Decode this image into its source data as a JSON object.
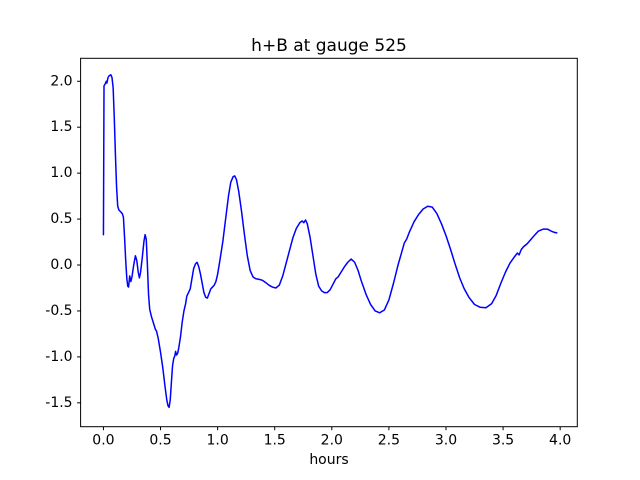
{
  "chart_data": {
    "type": "line",
    "title": "h+B at gauge 525",
    "xlabel": "hours",
    "ylabel": "",
    "xlim": [
      -0.2,
      4.15
    ],
    "ylim": [
      -1.76,
      2.25
    ],
    "grid": false,
    "legend": null,
    "line_color": "#0000ff",
    "line_width": 1.5,
    "x_ticks": [
      {
        "label": "0.0",
        "value": 0.0
      },
      {
        "label": "0.5",
        "value": 0.5
      },
      {
        "label": "1.0",
        "value": 1.0
      },
      {
        "label": "1.5",
        "value": 1.5
      },
      {
        "label": "2.0",
        "value": 2.0
      },
      {
        "label": "2.5",
        "value": 2.5
      },
      {
        "label": "3.0",
        "value": 3.0
      },
      {
        "label": "3.5",
        "value": 3.5
      },
      {
        "label": "4.0",
        "value": 4.0
      }
    ],
    "y_ticks": [
      {
        "label": "2.0",
        "value": 2.0
      },
      {
        "label": "1.5",
        "value": 1.5
      },
      {
        "label": "1.0",
        "value": 1.0
      },
      {
        "label": "0.5",
        "value": 0.5
      },
      {
        "label": "0.0",
        "value": 0.0
      },
      {
        "label": "-0.5",
        "value": -0.5
      },
      {
        "label": "-1.0",
        "value": -1.0
      },
      {
        "label": "-1.5",
        "value": -1.5
      }
    ],
    "series": [
      {
        "name": "h+B",
        "points": [
          [
            0.0,
            0.33
          ],
          [
            0.005,
            1.95
          ],
          [
            0.015,
            1.97
          ],
          [
            0.025,
            2.0
          ],
          [
            0.03,
            1.98
          ],
          [
            0.04,
            2.04
          ],
          [
            0.05,
            2.06
          ],
          [
            0.065,
            2.07
          ],
          [
            0.075,
            2.04
          ],
          [
            0.085,
            1.93
          ],
          [
            0.095,
            1.6
          ],
          [
            0.105,
            1.2
          ],
          [
            0.115,
            0.85
          ],
          [
            0.125,
            0.64
          ],
          [
            0.135,
            0.6
          ],
          [
            0.15,
            0.58
          ],
          [
            0.165,
            0.56
          ],
          [
            0.175,
            0.52
          ],
          [
            0.185,
            0.3
          ],
          [
            0.195,
            0.05
          ],
          [
            0.205,
            -0.15
          ],
          [
            0.213,
            -0.23
          ],
          [
            0.22,
            -0.24
          ],
          [
            0.23,
            -0.12
          ],
          [
            0.24,
            -0.18
          ],
          [
            0.25,
            -0.13
          ],
          [
            0.265,
            0.0
          ],
          [
            0.28,
            0.1
          ],
          [
            0.292,
            0.05
          ],
          [
            0.305,
            -0.08
          ],
          [
            0.315,
            -0.14
          ],
          [
            0.325,
            -0.08
          ],
          [
            0.34,
            0.08
          ],
          [
            0.355,
            0.26
          ],
          [
            0.365,
            0.33
          ],
          [
            0.375,
            0.28
          ],
          [
            0.385,
            0.0
          ],
          [
            0.395,
            -0.32
          ],
          [
            0.405,
            -0.48
          ],
          [
            0.42,
            -0.56
          ],
          [
            0.43,
            -0.6
          ],
          [
            0.445,
            -0.66
          ],
          [
            0.455,
            -0.7
          ],
          [
            0.465,
            -0.72
          ],
          [
            0.48,
            -0.8
          ],
          [
            0.5,
            -0.95
          ],
          [
            0.52,
            -1.12
          ],
          [
            0.54,
            -1.33
          ],
          [
            0.555,
            -1.47
          ],
          [
            0.565,
            -1.53
          ],
          [
            0.575,
            -1.55
          ],
          [
            0.585,
            -1.47
          ],
          [
            0.595,
            -1.28
          ],
          [
            0.605,
            -1.1
          ],
          [
            0.615,
            -1.02
          ],
          [
            0.625,
            -0.99
          ],
          [
            0.632,
            -0.94
          ],
          [
            0.64,
            -0.98
          ],
          [
            0.65,
            -0.96
          ],
          [
            0.66,
            -0.9
          ],
          [
            0.675,
            -0.78
          ],
          [
            0.69,
            -0.62
          ],
          [
            0.705,
            -0.5
          ],
          [
            0.72,
            -0.42
          ],
          [
            0.73,
            -0.34
          ],
          [
            0.745,
            -0.3
          ],
          [
            0.76,
            -0.26
          ],
          [
            0.775,
            -0.15
          ],
          [
            0.79,
            -0.04
          ],
          [
            0.805,
            0.01
          ],
          [
            0.82,
            0.03
          ],
          [
            0.835,
            -0.02
          ],
          [
            0.85,
            -0.1
          ],
          [
            0.865,
            -0.2
          ],
          [
            0.88,
            -0.3
          ],
          [
            0.895,
            -0.35
          ],
          [
            0.91,
            -0.36
          ],
          [
            0.925,
            -0.31
          ],
          [
            0.94,
            -0.26
          ],
          [
            0.955,
            -0.24
          ],
          [
            0.97,
            -0.22
          ],
          [
            0.985,
            -0.18
          ],
          [
            1.0,
            -0.1
          ],
          [
            1.02,
            0.05
          ],
          [
            1.045,
            0.25
          ],
          [
            1.07,
            0.5
          ],
          [
            1.095,
            0.75
          ],
          [
            1.115,
            0.9
          ],
          [
            1.135,
            0.96
          ],
          [
            1.15,
            0.97
          ],
          [
            1.165,
            0.93
          ],
          [
            1.185,
            0.8
          ],
          [
            1.21,
            0.58
          ],
          [
            1.235,
            0.33
          ],
          [
            1.26,
            0.1
          ],
          [
            1.285,
            -0.06
          ],
          [
            1.31,
            -0.13
          ],
          [
            1.335,
            -0.15
          ],
          [
            1.36,
            -0.155
          ],
          [
            1.39,
            -0.165
          ],
          [
            1.42,
            -0.19
          ],
          [
            1.45,
            -0.22
          ],
          [
            1.48,
            -0.24
          ],
          [
            1.51,
            -0.25
          ],
          [
            1.54,
            -0.22
          ],
          [
            1.57,
            -0.12
          ],
          [
            1.6,
            0.02
          ],
          [
            1.63,
            0.16
          ],
          [
            1.66,
            0.3
          ],
          [
            1.69,
            0.4
          ],
          [
            1.72,
            0.46
          ],
          [
            1.74,
            0.48
          ],
          [
            1.755,
            0.46
          ],
          [
            1.77,
            0.49
          ],
          [
            1.785,
            0.45
          ],
          [
            1.81,
            0.3
          ],
          [
            1.835,
            0.1
          ],
          [
            1.86,
            -0.1
          ],
          [
            1.885,
            -0.23
          ],
          [
            1.91,
            -0.28
          ],
          [
            1.935,
            -0.3
          ],
          [
            1.96,
            -0.3
          ],
          [
            1.985,
            -0.27
          ],
          [
            2.01,
            -0.21
          ],
          [
            2.035,
            -0.15
          ],
          [
            2.055,
            -0.13
          ],
          [
            2.08,
            -0.08
          ],
          [
            2.11,
            -0.02
          ],
          [
            2.14,
            0.03
          ],
          [
            2.17,
            0.065
          ],
          [
            2.2,
            0.03
          ],
          [
            2.23,
            -0.06
          ],
          [
            2.26,
            -0.18
          ],
          [
            2.3,
            -0.32
          ],
          [
            2.34,
            -0.43
          ],
          [
            2.38,
            -0.5
          ],
          [
            2.42,
            -0.52
          ],
          [
            2.46,
            -0.49
          ],
          [
            2.5,
            -0.38
          ],
          [
            2.54,
            -0.2
          ],
          [
            2.58,
            0.0
          ],
          [
            2.61,
            0.13
          ],
          [
            2.635,
            0.24
          ],
          [
            2.655,
            0.28
          ],
          [
            2.68,
            0.36
          ],
          [
            2.72,
            0.47
          ],
          [
            2.76,
            0.55
          ],
          [
            2.8,
            0.61
          ],
          [
            2.84,
            0.64
          ],
          [
            2.88,
            0.63
          ],
          [
            2.92,
            0.56
          ],
          [
            2.96,
            0.45
          ],
          [
            3.0,
            0.32
          ],
          [
            3.04,
            0.17
          ],
          [
            3.08,
            0.01
          ],
          [
            3.12,
            -0.14
          ],
          [
            3.16,
            -0.26
          ],
          [
            3.2,
            -0.35
          ],
          [
            3.25,
            -0.43
          ],
          [
            3.3,
            -0.46
          ],
          [
            3.35,
            -0.465
          ],
          [
            3.4,
            -0.42
          ],
          [
            3.44,
            -0.33
          ],
          [
            3.48,
            -0.2
          ],
          [
            3.52,
            -0.08
          ],
          [
            3.56,
            0.02
          ],
          [
            3.6,
            0.09
          ],
          [
            3.625,
            0.13
          ],
          [
            3.64,
            0.11
          ],
          [
            3.66,
            0.17
          ],
          [
            3.68,
            0.2
          ],
          [
            3.71,
            0.23
          ],
          [
            3.745,
            0.28
          ],
          [
            3.78,
            0.33
          ],
          [
            3.81,
            0.37
          ],
          [
            3.85,
            0.39
          ],
          [
            3.89,
            0.39
          ],
          [
            3.92,
            0.37
          ],
          [
            3.95,
            0.355
          ],
          [
            3.97,
            0.35
          ]
        ]
      }
    ]
  }
}
